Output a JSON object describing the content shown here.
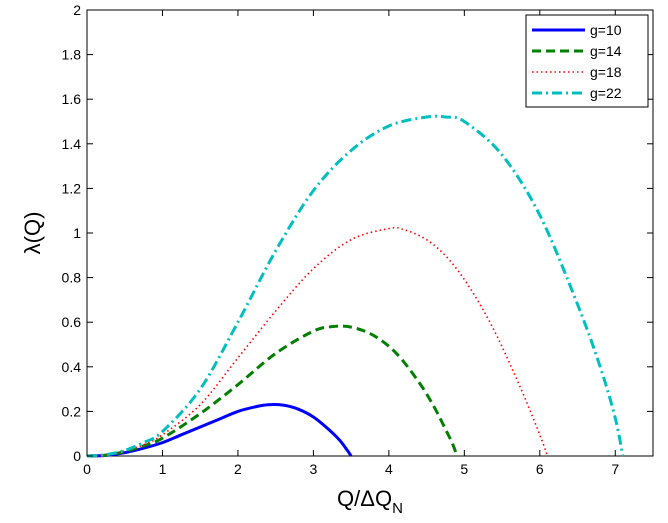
{
  "chart_data": {
    "type": "line",
    "xlabel": "Q/ΔQ",
    "xlabel_subscript": "N",
    "ylabel": "λ(Q)",
    "xlim": [
      0,
      7.5
    ],
    "ylim": [
      0,
      2
    ],
    "xticks": [
      0,
      1,
      2,
      3,
      4,
      5,
      6,
      7
    ],
    "yticks": [
      0,
      0.2,
      0.4,
      0.6,
      0.8,
      1,
      1.2,
      1.4,
      1.6,
      1.8,
      2
    ],
    "xtick_labels": [
      "0",
      "1",
      "2",
      "3",
      "4",
      "5",
      "6",
      "7"
    ],
    "ytick_labels": [
      "0",
      "0.2",
      "0.4",
      "0.6",
      "0.8",
      "1",
      "1.2",
      "1.4",
      "1.6",
      "1.8",
      "2"
    ],
    "grid": false,
    "legend_position": "top-right",
    "series": [
      {
        "name": "g=10",
        "color": "#0000ff",
        "style": "solid",
        "x": [
          0,
          0.25,
          0.5,
          0.75,
          1.0,
          1.25,
          1.5,
          1.75,
          2.0,
          2.25,
          2.4,
          2.6,
          2.8,
          3.0,
          3.2,
          3.35,
          3.45,
          3.5
        ],
        "y": [
          0,
          0.003,
          0.015,
          0.035,
          0.06,
          0.095,
          0.13,
          0.165,
          0.2,
          0.222,
          0.23,
          0.228,
          0.21,
          0.175,
          0.12,
          0.07,
          0.025,
          0
        ]
      },
      {
        "name": "g=14",
        "color": "#007f00",
        "style": "dashed",
        "x": [
          0,
          0.25,
          0.5,
          0.75,
          1.0,
          1.5,
          2.0,
          2.5,
          3.0,
          3.25,
          3.5,
          3.8,
          4.1,
          4.4,
          4.6,
          4.75,
          4.85,
          4.9
        ],
        "y": [
          0,
          0.004,
          0.02,
          0.045,
          0.08,
          0.19,
          0.32,
          0.46,
          0.56,
          0.58,
          0.578,
          0.54,
          0.46,
          0.33,
          0.22,
          0.12,
          0.05,
          0
        ]
      },
      {
        "name": "g=18",
        "color": "#ff0000",
        "style": "dotted",
        "x": [
          0,
          0.25,
          0.5,
          0.75,
          1.0,
          1.5,
          2.0,
          2.5,
          3.0,
          3.5,
          4.0,
          4.2,
          4.5,
          4.8,
          5.1,
          5.4,
          5.7,
          5.9,
          6.05,
          6.1
        ],
        "y": [
          0,
          0.005,
          0.022,
          0.05,
          0.095,
          0.23,
          0.44,
          0.65,
          0.84,
          0.97,
          1.02,
          1.015,
          0.97,
          0.88,
          0.74,
          0.56,
          0.34,
          0.18,
          0.05,
          0
        ]
      },
      {
        "name": "g=22",
        "color": "#00bfbf",
        "style": "dashdot",
        "x": [
          0,
          0.25,
          0.5,
          0.75,
          1.0,
          1.5,
          2.0,
          2.5,
          3.0,
          3.5,
          4.0,
          4.5,
          4.75,
          5.0,
          5.5,
          6.0,
          6.5,
          6.8,
          7.0,
          7.1
        ],
        "y": [
          0,
          0.006,
          0.025,
          0.06,
          0.11,
          0.3,
          0.6,
          0.92,
          1.19,
          1.37,
          1.48,
          1.52,
          1.52,
          1.5,
          1.35,
          1.08,
          0.68,
          0.4,
          0.17,
          0
        ]
      }
    ]
  }
}
